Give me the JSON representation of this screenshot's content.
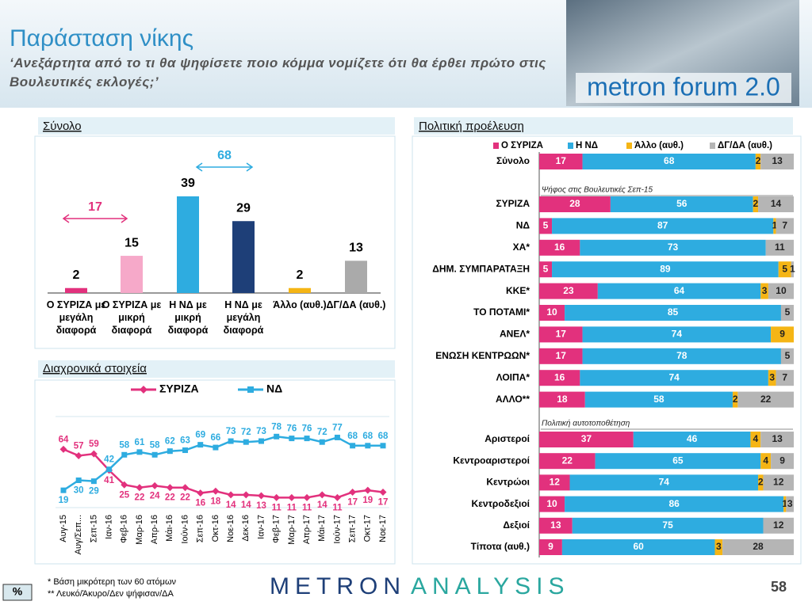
{
  "header": {
    "title": "Παράσταση νίκης",
    "subtitle": "‘Ανεξάρτητα από το τι θα ψηφίσετε ποιο κόμμα νομίζετε ότι θα έρθει πρώτο στις Βουλευτικές εκλογές;’",
    "logo": "metron forum 2.0"
  },
  "footer": {
    "notes": [
      "*  Βάση μικρότερη των 60 ατόμων",
      "** Λευκό/Άκυρο/Δεν ψήφισαν/ΔΑ"
    ],
    "unit": "%",
    "brand": [
      "METRON",
      "ANALYSIS"
    ],
    "page": "58"
  },
  "chart_data": [
    {
      "type": "bar",
      "title": "Σύνολο",
      "categories": [
        "Ο ΣΥΡΙΖΑ με μεγάλη διαφορά",
        "Ο ΣΥΡΙΖΑ με μικρή διαφορά",
        "Η ΝΔ με μικρή διαφορά",
        "Η ΝΔ με μεγάλη διαφορά",
        "Άλλο (αυθ.)",
        "ΔΓ/ΔΑ (αυθ.)"
      ],
      "values": [
        2,
        15,
        39,
        29,
        2,
        13
      ],
      "colors": [
        "#e2317d",
        "#f6a9c9",
        "#2eace0",
        "#1e3f78",
        "#f5b515",
        "#aaaaaa"
      ],
      "annotations": [
        {
          "value": 17,
          "color": "#e2317d"
        },
        {
          "value": 68,
          "color": "#2eace0"
        }
      ]
    },
    {
      "type": "line",
      "title": "Διαχρονικά στοιχεία",
      "categories": [
        "Αυγ-15",
        "Αυγ/Σεπ...",
        "Σεπ-15",
        "Ιαν-16",
        "Φεβ-16",
        "Μαρ-16",
        "Απρ-16",
        "Μάι-16",
        "Ιούν-16",
        "Σεπ-16",
        "Οκτ-16",
        "Νοε-16",
        "Δεκ-16",
        "Ιαν-17",
        "Φεβ-17",
        "Μαρ-17",
        "Απρ-17",
        "Μάι-17",
        "Ιούν-17",
        "Σεπ-17",
        "Οκτ-17",
        "Νοε-17"
      ],
      "series": [
        {
          "name": "ΣΥΡΙΖΑ",
          "color": "#e2317d",
          "values": [
            64,
            57,
            59,
            41,
            25,
            22,
            24,
            22,
            22,
            16,
            18,
            14,
            14,
            13,
            11,
            11,
            11,
            14,
            11,
            17,
            19,
            17
          ]
        },
        {
          "name": "ΝΔ",
          "color": "#2eace0",
          "values": [
            19,
            30,
            29,
            42,
            58,
            61,
            58,
            62,
            63,
            69,
            66,
            73,
            72,
            73,
            78,
            76,
            76,
            72,
            77,
            68,
            68,
            68
          ]
        }
      ],
      "ylim": [
        0,
        100
      ]
    },
    {
      "type": "stacked-bar",
      "title": "Πολιτική προέλευση",
      "categories": [
        "Σύνολο",
        "ΣΥΡΙΖΑ",
        "ΝΔ",
        "ΧΑ*",
        "ΔΗΜ. ΣΥΜΠΑΡΑΤΑΞΗ",
        "ΚΚΕ*",
        "ΤΟ ΠΟΤΑΜΙ*",
        "ΑΝΕΛ*",
        "ΕΝΩΣΗ ΚΕΝΤΡΩΩΝ*",
        "ΛΟΙΠΑ*",
        "ΑΛΛΟ**",
        "Αριστεροί",
        "Κεντροαριστεροί",
        "Κεντρώοι",
        "Κεντροδεξιοί",
        "Δεξιοί",
        "Τίποτα (αυθ.)"
      ],
      "annotations": [
        "Ψήφος στις Βουλευτικές Σεπ-15",
        "Πολιτική αυτοτοποθέτηση"
      ],
      "series": [
        {
          "name": "Ο ΣΥΡΙΖΑ",
          "color": "#e2317d",
          "values": [
            17,
            28,
            5,
            16,
            5,
            23,
            10,
            17,
            17,
            16,
            18,
            37,
            22,
            12,
            10,
            13,
            9
          ]
        },
        {
          "name": "Η ΝΔ",
          "color": "#2eace0",
          "values": [
            68,
            56,
            87,
            73,
            89,
            64,
            85,
            74,
            78,
            74,
            58,
            46,
            65,
            74,
            86,
            75,
            60
          ]
        },
        {
          "name": "Άλλο (αυθ.)",
          "color": "#f5b515",
          "values": [
            2,
            2,
            1,
            null,
            5,
            3,
            null,
            9,
            null,
            3,
            2,
            4,
            4,
            2,
            1,
            null,
            3
          ]
        },
        {
          "name": "ΔΓ/ΔΑ (αυθ.)",
          "color": "#b5b5b5",
          "values": [
            13,
            14,
            7,
            11,
            1,
            10,
            5,
            null,
            5,
            7,
            22,
            13,
            9,
            12,
            3,
            12,
            28
          ]
        }
      ],
      "xlim": [
        0,
        100
      ]
    }
  ]
}
